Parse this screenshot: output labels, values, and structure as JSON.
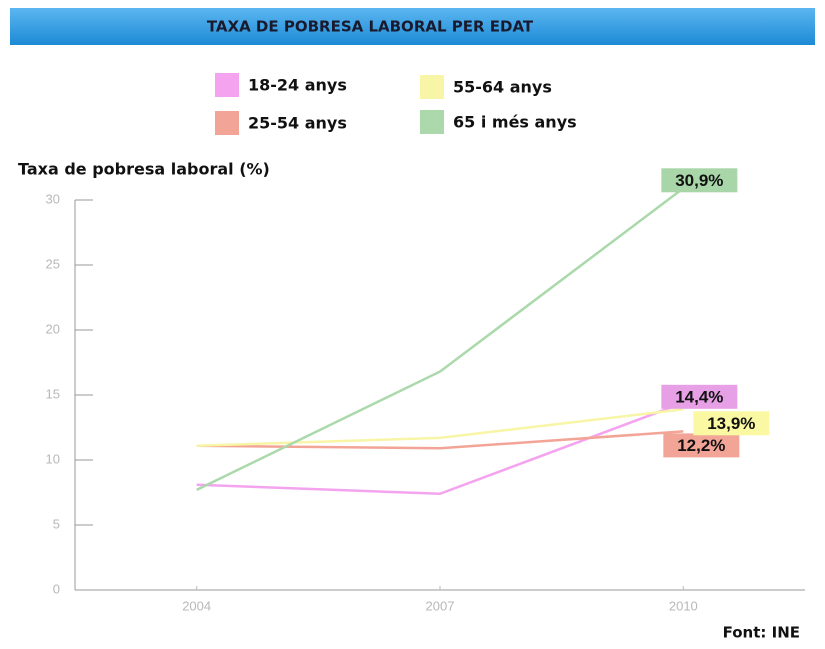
{
  "chart_data": {
    "type": "line",
    "title": "TAXA DE POBRESA LABORAL PER EDAT",
    "y_label": "Taxa de pobresa laboral (%)",
    "source": "Font: INE",
    "x": [
      2004,
      2007,
      2010
    ],
    "xlim": [
      2002.5,
      2011.5
    ],
    "xticks": [
      2004,
      2007,
      2010
    ],
    "ylim": [
      0,
      30
    ],
    "yticks": [
      0,
      5,
      10,
      15,
      20,
      25,
      30
    ],
    "series": [
      {
        "name": "18-24 anys",
        "color": "#f4a4ee",
        "label_color": "#e7a0e6",
        "values": [
          8.1,
          7.4,
          14.4
        ],
        "value_labels": [
          null,
          null,
          "14,4%"
        ]
      },
      {
        "name": "25-54 anys",
        "color": "#f2a596",
        "label_color": "#f2a596",
        "values": [
          11.1,
          10.9,
          12.2
        ],
        "value_labels": [
          null,
          null,
          "12,2%"
        ]
      },
      {
        "name": "55-64 anys",
        "color": "#f8f5a6",
        "label_color": "#fbf8a4",
        "values": [
          11.1,
          11.7,
          13.9
        ],
        "value_labels": [
          null,
          null,
          "13,9%"
        ]
      },
      {
        "name": "65 i més anys",
        "color": "#abd9ab",
        "label_color": "#a9d6a9",
        "values": [
          7.7,
          16.8,
          30.9
        ],
        "value_labels": [
          null,
          null,
          "30,9%"
        ]
      }
    ]
  }
}
